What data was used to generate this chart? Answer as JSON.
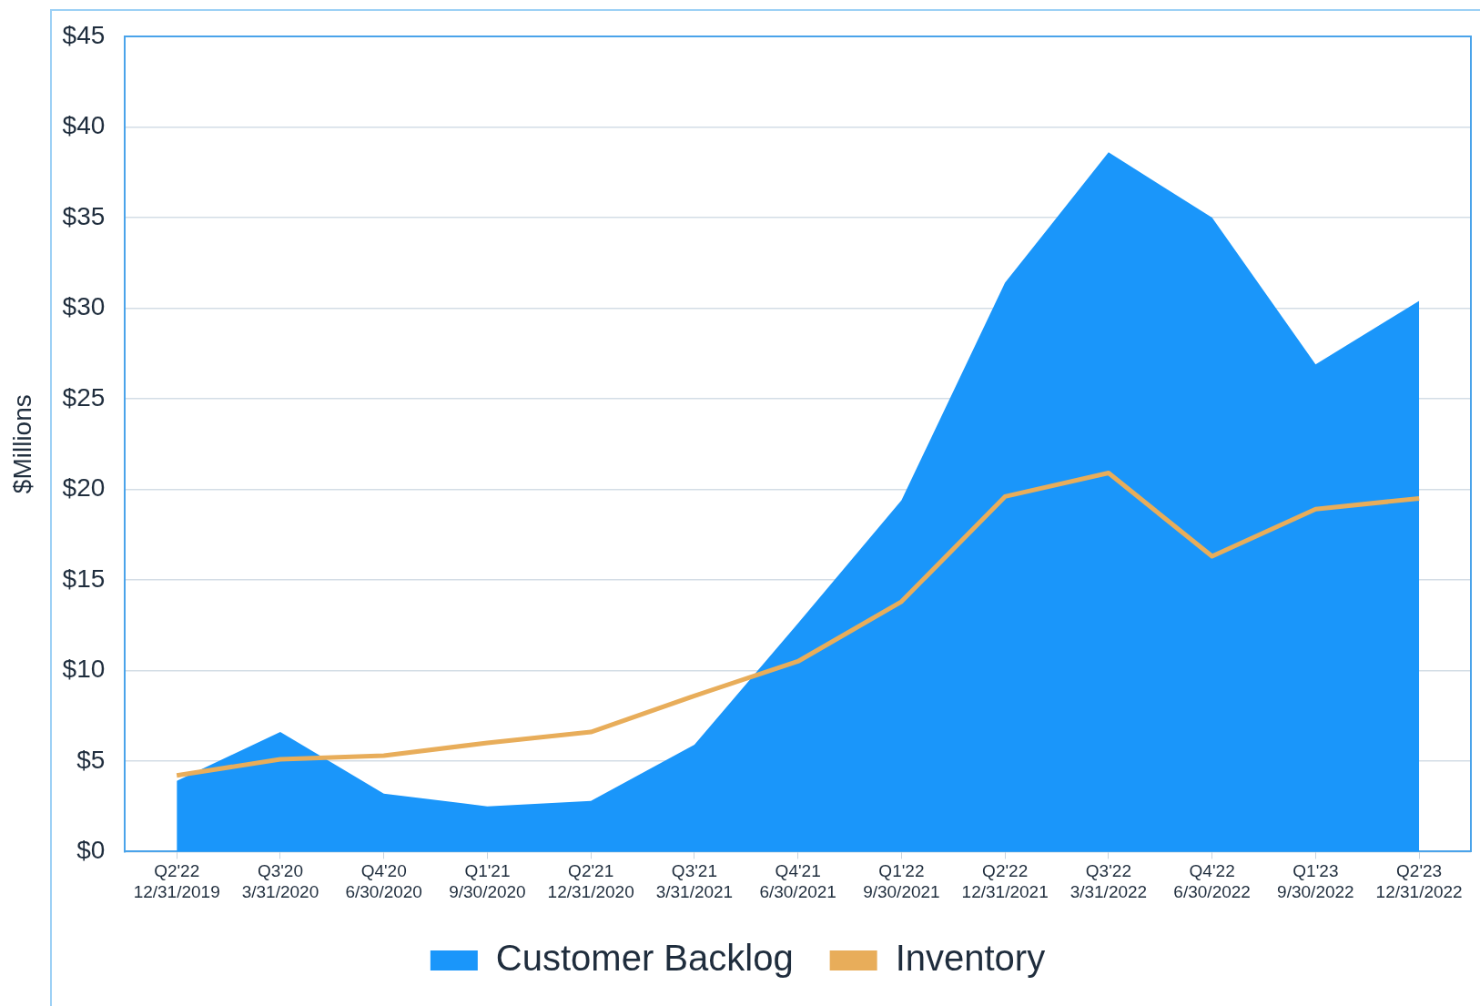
{
  "chart_data": {
    "type": "area",
    "ylabel": "$Millions",
    "categories": [
      "Q2'22\n12/31/2019",
      "Q3'20\n3/31/2020",
      "Q4'20\n6/30/2020",
      "Q1'21\n9/30/2020",
      "Q2'21\n12/31/2020",
      "Q3'21\n3/31/2021",
      "Q4'21\n6/30/2021",
      "Q1'22\n9/30/2021",
      "Q2'22\n12/31/2021",
      "Q3'22\n3/31/2022",
      "Q4'22\n6/30/2022",
      "Q1'23\n9/30/2022",
      "Q2'23\n12/31/2022"
    ],
    "series": [
      {
        "name": "Customer Backlog",
        "type": "area",
        "color": "#1a96fa",
        "values": [
          3.9,
          6.6,
          3.2,
          2.5,
          2.8,
          5.9,
          12.6,
          19.4,
          31.4,
          38.6,
          35.0,
          26.9,
          30.4
        ]
      },
      {
        "name": "Inventory",
        "type": "line",
        "color": "#e8ad5a",
        "values": [
          4.2,
          5.1,
          5.3,
          6.0,
          6.6,
          8.6,
          10.5,
          13.8,
          19.6,
          20.9,
          16.3,
          18.9,
          19.5
        ]
      }
    ],
    "ylim": [
      0,
      45
    ],
    "yticks": [
      {
        "value": 0,
        "label": "$0"
      },
      {
        "value": 5,
        "label": "$5"
      },
      {
        "value": 10,
        "label": "$10"
      },
      {
        "value": 15,
        "label": "$15"
      },
      {
        "value": 20,
        "label": "$20"
      },
      {
        "value": 25,
        "label": "$25"
      },
      {
        "value": 30,
        "label": "$30"
      },
      {
        "value": 35,
        "label": "$35"
      },
      {
        "value": 40,
        "label": "$40"
      },
      {
        "value": 45,
        "label": "$45"
      }
    ],
    "grid": "y",
    "legend": "bottom",
    "marker": "none",
    "line_style": "solid"
  }
}
